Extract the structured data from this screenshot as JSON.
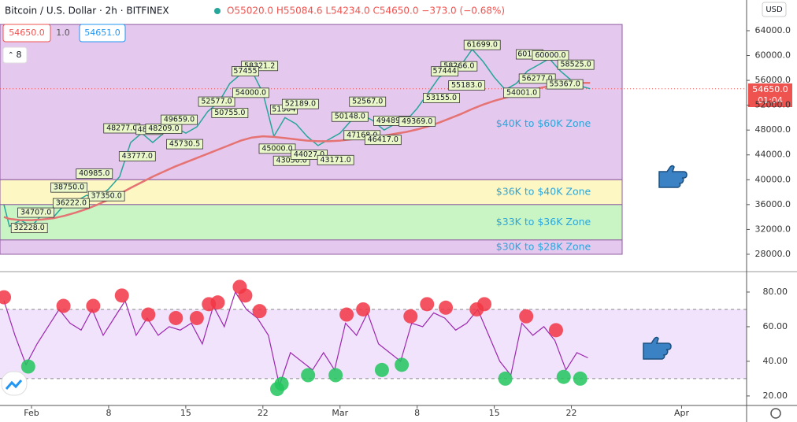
{
  "header": {
    "symbol": "Bitcoin / U.S. Dollar · 2h · BITFINEX",
    "ohlc": "O55020.0 H55084.6 L54234.0 C54650.0 −373.0 (−0.68%)",
    "bid": "54650.0",
    "spread": "1.0",
    "ask": "54651.0",
    "indicators": "8",
    "currency": "USD",
    "price_label": "54650.0",
    "countdown": "01:04"
  },
  "chart_data": [
    {
      "type": "line",
      "xlim": [
        29.14,
        96.9
      ],
      "xticks": [
        {
          "value": 32,
          "label": "Feb"
        },
        {
          "value": 39,
          "label": "8"
        },
        {
          "value": 46,
          "label": "15"
        },
        {
          "value": 53,
          "label": "22"
        },
        {
          "value": 60,
          "label": "Mar"
        },
        {
          "value": 67,
          "label": "8"
        },
        {
          "value": 74,
          "label": "15"
        },
        {
          "value": 81,
          "label": "22"
        },
        {
          "value": 91,
          "label": "Apr"
        }
      ],
      "ylim": [
        25460,
        68940
      ],
      "yticks": [
        {
          "value": 64000,
          "label": "64000.0"
        },
        {
          "value": 60000,
          "label": "60000.0"
        },
        {
          "value": 56000,
          "label": "56000.0"
        },
        {
          "value": 52000,
          "label": "52000.0"
        },
        {
          "value": 48000,
          "label": "48000.0"
        },
        {
          "value": 44000,
          "label": "44000.0"
        },
        {
          "value": 40000,
          "label": "40000.0"
        },
        {
          "value": 36000,
          "label": "36000.0"
        },
        {
          "value": 32000,
          "label": "32000.0"
        },
        {
          "value": 28000,
          "label": "28000.0"
        }
      ],
      "current_price": 54650,
      "x": [
        29.5,
        30,
        31,
        32,
        33,
        34,
        35,
        36,
        37,
        38,
        39,
        40,
        41,
        42,
        43,
        44,
        45,
        46,
        47,
        48,
        49,
        50,
        51,
        52,
        53,
        54,
        55,
        56,
        57,
        58,
        59,
        60,
        61,
        62,
        63,
        64,
        65,
        66,
        67,
        68,
        69,
        70,
        71,
        72,
        73,
        74,
        75,
        76,
        77,
        78,
        79,
        80,
        81,
        82,
        82.7
      ],
      "series": [
        {
          "color": "#26a69a",
          "values": [
            36000,
            32500,
            33500,
            32500,
            34500,
            34000,
            36000,
            36500,
            37500,
            37000,
            38500,
            40500,
            46000,
            47500,
            46000,
            47500,
            48500,
            47500,
            48500,
            51000,
            52500,
            55500,
            57000,
            57500,
            54000,
            47000,
            50000,
            49000,
            47000,
            45500,
            46500,
            47500,
            49500,
            50500,
            49500,
            48000,
            49000,
            49500,
            51500,
            54000,
            56500,
            57500,
            58500,
            61000,
            59000,
            56500,
            54500,
            55500,
            57500,
            58500,
            59500,
            57500,
            56000,
            55000,
            54650
          ]
        },
        {
          "color": "#e57373",
          "values": [
            34000,
            33700,
            33500,
            33500,
            33600,
            33800,
            34200,
            34700,
            35300,
            36000,
            36800,
            37700,
            38700,
            39600,
            40500,
            41300,
            42100,
            42800,
            43500,
            44200,
            44900,
            45600,
            46300,
            46800,
            47000,
            46900,
            46700,
            46500,
            46300,
            46200,
            46200,
            46300,
            46500,
            46700,
            46900,
            47100,
            47400,
            47700,
            48100,
            48600,
            49200,
            49900,
            50600,
            51400,
            52100,
            52700,
            53200,
            53700,
            54200,
            54700,
            55100,
            55400,
            55500,
            55600,
            55600
          ]
        }
      ],
      "zones": [
        {
          "label": "$40K to $60K Zone",
          "from": 40000,
          "to": 65000,
          "color": "#e5c8ee"
        },
        {
          "label": "$36K to $40K Zone",
          "from": 36000,
          "to": 40000,
          "color": "#fdf7c3"
        },
        {
          "label": "$33K to $36K Zone",
          "from": 30300,
          "to": 36000,
          "color": "#c9f5c5"
        },
        {
          "label": "$30K to $28K Zone",
          "from": 28000,
          "to": 30300,
          "color": "#e5c8ee"
        }
      ],
      "annotations": [
        {
          "x": 72.9,
          "y": 61699,
          "label": "61699.0"
        },
        {
          "x": 77.2,
          "y": 60191,
          "label": "60191"
        },
        {
          "x": 79.1,
          "y": 60000,
          "label": "60000.0"
        },
        {
          "x": 81.4,
          "y": 58525,
          "label": "58525.0"
        },
        {
          "x": 70.8,
          "y": 58266,
          "label": "58266.0"
        },
        {
          "x": 69.5,
          "y": 57444,
          "label": "57444"
        },
        {
          "x": 52.7,
          "y": 58321.2,
          "label": "58321.2"
        },
        {
          "x": 51.4,
          "y": 57455,
          "label": "57455"
        },
        {
          "x": 48.8,
          "y": 52577,
          "label": "52577.0"
        },
        {
          "x": 51.9,
          "y": 54000,
          "label": "54000.0"
        },
        {
          "x": 50.0,
          "y": 50755,
          "label": "50755.0"
        },
        {
          "x": 54.9,
          "y": 51304,
          "label": "51304"
        },
        {
          "x": 56.4,
          "y": 52189,
          "label": "52189.0"
        },
        {
          "x": 40.2,
          "y": 48277,
          "label": "48277.0"
        },
        {
          "x": 42.7,
          "y": 48045,
          "label": "48045"
        },
        {
          "x": 44.0,
          "y": 48209,
          "label": "48209.0"
        },
        {
          "x": 45.4,
          "y": 49659,
          "label": "49659.0"
        },
        {
          "x": 45.9,
          "y": 45730.5,
          "label": "45730.5"
        },
        {
          "x": 41.6,
          "y": 43777,
          "label": "43777.0"
        },
        {
          "x": 54.3,
          "y": 45000,
          "label": "45000.0"
        },
        {
          "x": 55.6,
          "y": 43050,
          "label": "43050.0"
        },
        {
          "x": 57.2,
          "y": 44027,
          "label": "44027.0"
        },
        {
          "x": 59.6,
          "y": 43171,
          "label": "43171.0"
        },
        {
          "x": 60.9,
          "y": 50148,
          "label": "50148.0"
        },
        {
          "x": 62.5,
          "y": 52567,
          "label": "52567.0"
        },
        {
          "x": 62.0,
          "y": 47168,
          "label": "47168.0"
        },
        {
          "x": 63.9,
          "y": 46417,
          "label": "46417.0"
        },
        {
          "x": 64.7,
          "y": 49489,
          "label": "49489.0"
        },
        {
          "x": 67.0,
          "y": 49369,
          "label": "49369.0"
        },
        {
          "x": 69.2,
          "y": 53155,
          "label": "53155.0"
        },
        {
          "x": 71.5,
          "y": 55183,
          "label": "55183.0"
        },
        {
          "x": 76.5,
          "y": 54001,
          "label": "54001.0"
        },
        {
          "x": 77.9,
          "y": 56277,
          "label": "56277.0"
        },
        {
          "x": 80.4,
          "y": 55367,
          "label": "55367.0"
        },
        {
          "x": 37.7,
          "y": 40985,
          "label": "40985.0"
        },
        {
          "x": 35.4,
          "y": 38750,
          "label": "38750.0"
        },
        {
          "x": 38.8,
          "y": 37350,
          "label": "37350.0"
        },
        {
          "x": 35.6,
          "y": 36222,
          "label": "36222.0"
        },
        {
          "x": 32.4,
          "y": 34707,
          "label": "34707.0"
        },
        {
          "x": 31.8,
          "y": 32228,
          "label": "32228.0"
        }
      ]
    },
    {
      "type": "rsi",
      "xlim": [
        29.14,
        96.9
      ],
      "ylim": [
        14.5,
        90.9
      ],
      "yticks": [
        {
          "value": 80,
          "label": "80.00"
        },
        {
          "value": 60,
          "label": "60.00"
        },
        {
          "value": 40,
          "label": "40.00"
        },
        {
          "value": 20,
          "label": "20.00"
        }
      ],
      "band": [
        30,
        70
      ],
      "color": "#9c27b0",
      "x": [
        29.5,
        30.5,
        31.5,
        32.5,
        33.5,
        34.5,
        35.5,
        36.5,
        37.5,
        38.5,
        39.5,
        40.5,
        41.5,
        42.5,
        43.5,
        44.5,
        45.5,
        46.5,
        47.5,
        48.5,
        49.5,
        50.5,
        51.5,
        52.5,
        53.5,
        54.5,
        55.5,
        56.5,
        57.5,
        58.5,
        59.5,
        60.5,
        61.5,
        62.5,
        63.5,
        64.5,
        65.5,
        66.5,
        67.5,
        68.5,
        69.5,
        70.5,
        71.5,
        72.5,
        73.5,
        74.5,
        75.5,
        76.5,
        77.5,
        78.5,
        79.5,
        80.5,
        81.5,
        82.5
      ],
      "values": [
        75,
        55,
        38,
        50,
        60,
        70,
        62,
        58,
        70,
        55,
        65,
        75,
        55,
        65,
        55,
        60,
        58,
        62,
        50,
        72,
        60,
        80,
        70,
        65,
        55,
        26,
        45,
        40,
        35,
        45,
        35,
        62,
        55,
        68,
        50,
        45,
        40,
        62,
        60,
        68,
        65,
        58,
        62,
        70,
        55,
        40,
        32,
        62,
        55,
        60,
        52,
        35,
        45,
        42
      ],
      "highs": {
        "color": "#f23645",
        "x": [
          29.5,
          34.9,
          37.6,
          40.2,
          42.6,
          45.1,
          47.0,
          48.1,
          48.9,
          50.9,
          51.4,
          52.7,
          60.6,
          62.1,
          66.4,
          67.9,
          69.6,
          72.4,
          73.1,
          76.9,
          79.6
        ],
        "values": [
          77,
          72,
          72,
          78,
          67,
          65,
          65,
          73,
          74,
          83,
          78,
          69,
          67,
          70,
          66,
          73,
          71,
          70,
          73,
          66,
          58
        ]
      },
      "lows": {
        "color": "#22c55e",
        "x": [
          31.7,
          54.3,
          54.7,
          57.1,
          59.6,
          63.8,
          65.6,
          75.0,
          80.3,
          81.8
        ],
        "values": [
          37,
          24,
          27,
          32,
          32,
          35,
          38,
          30,
          31,
          30
        ]
      }
    }
  ]
}
